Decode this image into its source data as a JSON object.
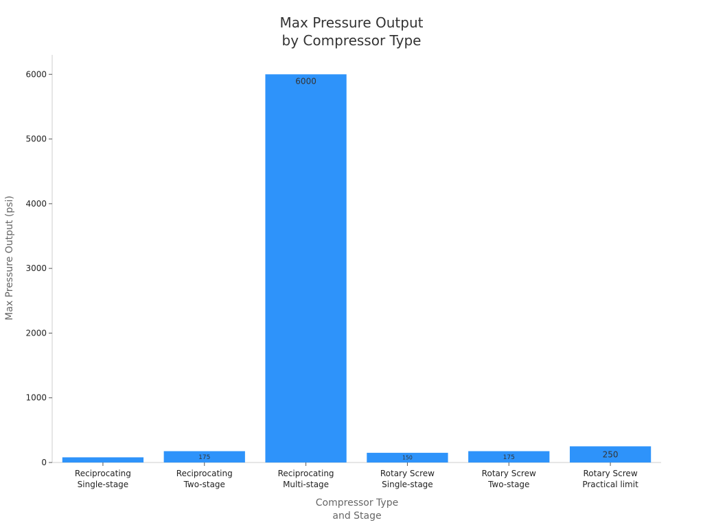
{
  "chart_data": {
    "type": "bar",
    "title": [
      "Max Pressure Output",
      "by Compressor Type"
    ],
    "xlabel": [
      "Compressor Type",
      "and Stage"
    ],
    "ylabel": "Max Pressure Output (psi)",
    "categories": [
      [
        "Reciprocating",
        "Single-stage"
      ],
      [
        "Reciprocating",
        "Two-stage"
      ],
      [
        "Reciprocating",
        "Multi-stage"
      ],
      [
        "Rotary Screw",
        "Single-stage"
      ],
      [
        "Rotary Screw",
        "Two-stage"
      ],
      [
        "Rotary Screw",
        "Practical limit"
      ]
    ],
    "values": [
      80,
      175,
      6000,
      150,
      175,
      250
    ],
    "data_labels": [
      "",
      "175",
      "6000",
      "150",
      "175",
      "250"
    ],
    "ylim": [
      0,
      6300
    ],
    "yticks": [
      0,
      1000,
      2000,
      3000,
      4000,
      5000,
      6000
    ],
    "bar_color": "#2e93fa",
    "grid": false
  }
}
